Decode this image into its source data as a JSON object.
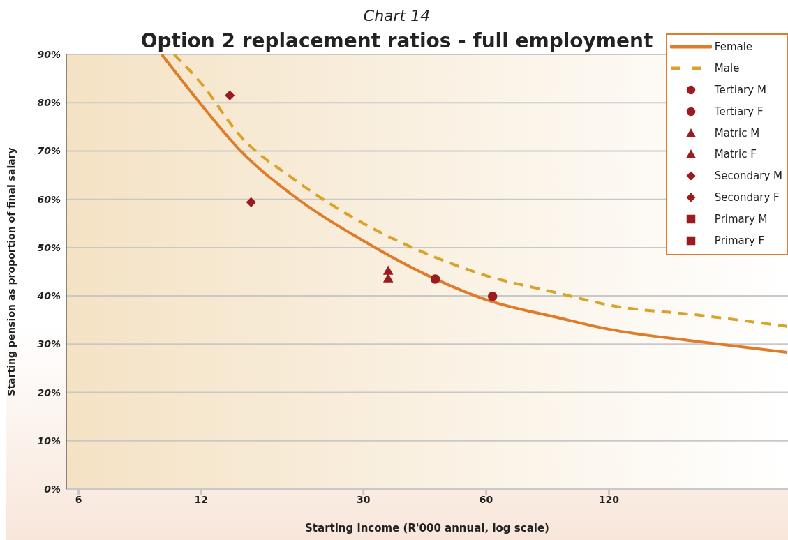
{
  "chart_data": {
    "type": "line",
    "subtitle": "Chart 14",
    "title": "Option 2 replacement ratios - full employment",
    "xlabel": "Starting income (R'000 annual, log scale)",
    "ylabel": "Starting pension as proportion of final salary",
    "log": "x",
    "xlim": [
      5.6,
      330
    ],
    "xticks": [
      6,
      12,
      30,
      60,
      120
    ],
    "ylim": [
      0,
      90
    ],
    "yticks": [
      {
        "value": 0,
        "label": "0%"
      },
      {
        "value": 10,
        "label": "10%"
      },
      {
        "value": 20,
        "label": "20%"
      },
      {
        "value": 30,
        "label": "30%"
      },
      {
        "value": 40,
        "label": "40%"
      },
      {
        "value": 50,
        "label": "50%"
      },
      {
        "value": 60,
        "label": "60%"
      },
      {
        "value": 70,
        "label": "70%"
      },
      {
        "value": 80,
        "label": "80%"
      },
      {
        "value": 90,
        "label": "90%"
      }
    ],
    "grid": "y",
    "legend": "top right",
    "series": [
      {
        "name": "Female",
        "color": "#e07b2a",
        "line_style": "solid",
        "marker": "none",
        "x": [
          9.6,
          12,
          15,
          20,
          30,
          45,
          60,
          90,
          120,
          200,
          328
        ],
        "values": [
          90,
          79.6,
          70,
          61,
          51.4,
          43.5,
          39.2,
          35.5,
          33.1,
          30.5,
          28.3
        ]
      },
      {
        "name": "Male",
        "color": "#dba22a",
        "line_style": "dashed",
        "marker": "none",
        "x": [
          10.3,
          12,
          15,
          20,
          30,
          45,
          60,
          90,
          120,
          200,
          328
        ],
        "values": [
          90,
          84,
          73,
          64.5,
          55,
          48,
          44.2,
          40.6,
          38.1,
          36,
          33.7
        ]
      },
      {
        "name": "Tertiary M",
        "type": "scatter",
        "color": "#9b1b1f",
        "marker": "circle",
        "x": [
          62.2
        ],
        "values": [
          39.9
        ]
      },
      {
        "name": "Tertiary F",
        "type": "scatter",
        "color": "#9b1b1f",
        "marker": "circle",
        "x": [
          45
        ],
        "values": [
          43.5
        ]
      },
      {
        "name": "Matric M",
        "type": "scatter",
        "color": "#9b1b1f",
        "marker": "triangle",
        "x": [
          34.5
        ],
        "values": [
          43.6
        ]
      },
      {
        "name": "Matric F",
        "type": "scatter",
        "color": "#9b1b1f",
        "marker": "triangle",
        "x": [
          34.5
        ],
        "values": [
          45.2
        ]
      },
      {
        "name": "Secondary M",
        "type": "scatter",
        "color": "#9b1b1f",
        "marker": "diamond",
        "x": [
          15.9
        ],
        "values": [
          59.4
        ]
      },
      {
        "name": "Secondary F",
        "type": "scatter",
        "color": "#9b1b1f",
        "marker": "diamond",
        "x": [
          14.1
        ],
        "values": [
          81.5
        ]
      },
      {
        "name": "Primary M",
        "type": "scatter",
        "color": "#9b1b1f",
        "marker": "square"
      },
      {
        "name": "Primary F",
        "type": "scatter",
        "color": "#9b1b1f",
        "marker": "square"
      }
    ]
  }
}
